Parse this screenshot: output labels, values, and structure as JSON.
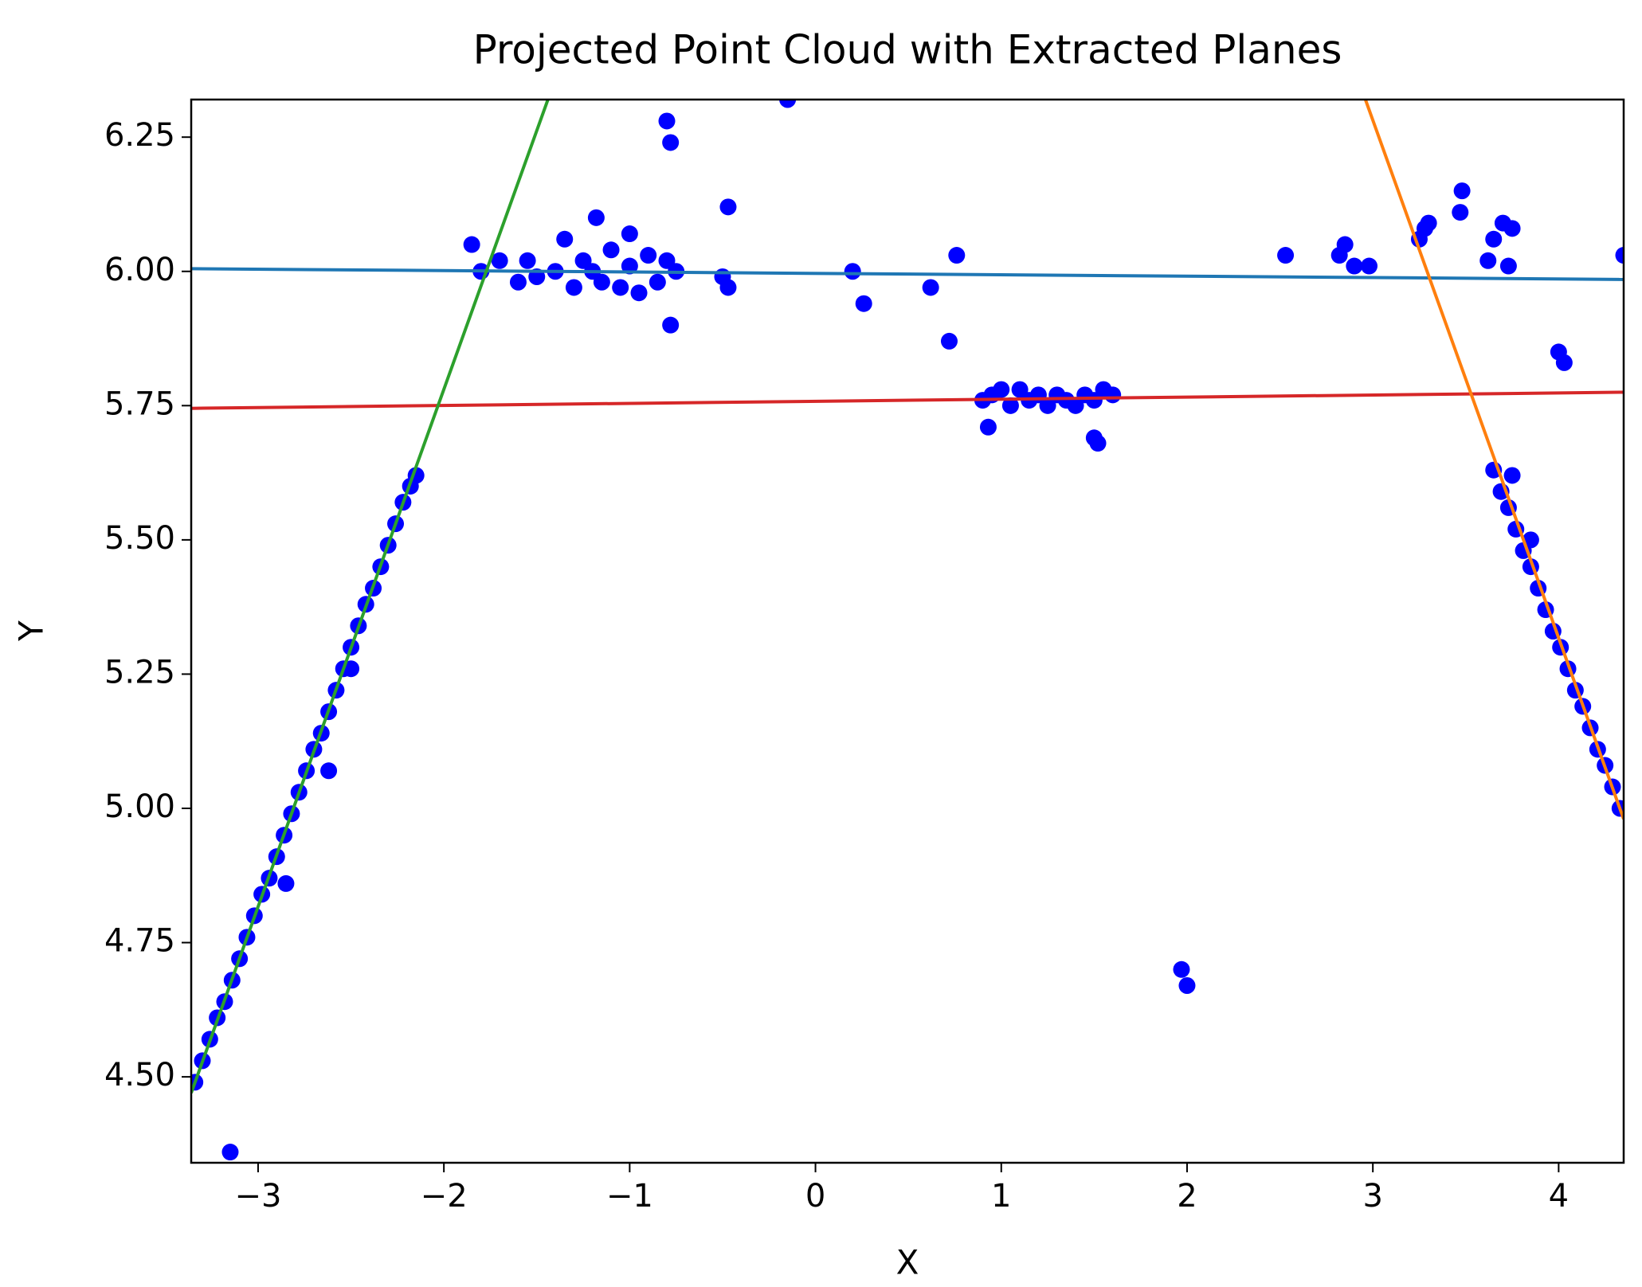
{
  "chart_data": {
    "type": "scatter",
    "title": "Projected Point Cloud with Extracted Planes",
    "x_label": "X",
    "y_label": "Y",
    "xlim": [
      -3.36,
      4.35
    ],
    "ylim": [
      4.34,
      6.32
    ],
    "xticks": [
      {
        "value": -3,
        "label": "−3"
      },
      {
        "value": -2,
        "label": "−2"
      },
      {
        "value": -1,
        "label": "−1"
      },
      0,
      1,
      2,
      3,
      4
    ],
    "yticks": [
      {
        "value": 4.5,
        "label": "4.50"
      },
      4.75,
      {
        "value": 5.0,
        "label": "5.00"
      },
      5.25,
      {
        "value": 5.5,
        "label": "5.50"
      },
      5.75,
      {
        "value": 6.0,
        "label": "6.00"
      },
      6.25
    ],
    "grid": false,
    "series": [
      {
        "type": "scatter",
        "color": "#0000ff",
        "x": [
          -3.34,
          -3.3,
          -3.26,
          -3.22,
          -3.18,
          -3.14,
          -3.1,
          -3.06,
          -3.02,
          -2.98,
          -2.94,
          -2.9,
          -2.86,
          -2.82,
          -2.78,
          -2.74,
          -2.7,
          -2.66,
          -2.62,
          -2.58,
          -2.54,
          -2.5,
          -2.46,
          -2.42,
          -2.38,
          -2.34,
          -2.3,
          -2.26,
          -2.22,
          -2.18,
          -2.15,
          -2.85,
          -2.62,
          -2.5,
          -3.15,
          3.65,
          3.69,
          3.73,
          3.77,
          3.81,
          3.85,
          3.89,
          3.93,
          3.97,
          4.01,
          4.05,
          4.09,
          4.13,
          4.17,
          4.21,
          4.25,
          4.29,
          4.33,
          3.75,
          3.85,
          -1.85,
          -1.8,
          -1.7,
          -1.6,
          -1.55,
          -1.5,
          -1.4,
          -1.35,
          -1.3,
          -1.25,
          -1.2,
          -1.18,
          -1.15,
          -1.1,
          -1.05,
          -1.0,
          -1.0,
          -0.95,
          -0.9,
          -0.85,
          -0.8,
          -0.78,
          -0.75,
          -0.5,
          -0.47,
          -0.47,
          -0.8,
          -0.78,
          -0.15,
          0.2,
          0.26,
          0.62,
          0.72,
          0.76,
          0.9,
          0.95,
          1.0,
          1.05,
          1.1,
          1.15,
          1.2,
          1.25,
          1.3,
          1.35,
          1.4,
          1.45,
          1.5,
          1.55,
          1.6,
          0.93,
          1.5,
          1.52,
          1.97,
          2.0,
          2.53,
          2.82,
          2.85,
          2.9,
          2.98,
          3.25,
          3.28,
          3.3,
          3.48,
          3.47,
          3.62,
          3.65,
          3.7,
          3.75,
          3.73,
          4.0,
          4.03,
          4.35
        ],
        "values": [
          4.49,
          4.53,
          4.57,
          4.61,
          4.64,
          4.68,
          4.72,
          4.76,
          4.8,
          4.84,
          4.87,
          4.91,
          4.95,
          4.99,
          5.03,
          5.07,
          5.11,
          5.14,
          5.18,
          5.22,
          5.26,
          5.3,
          5.34,
          5.38,
          5.41,
          5.45,
          5.49,
          5.53,
          5.57,
          5.6,
          5.62,
          4.86,
          5.07,
          5.26,
          4.36,
          5.63,
          5.59,
          5.56,
          5.52,
          5.48,
          5.45,
          5.41,
          5.37,
          5.33,
          5.3,
          5.26,
          5.22,
          5.19,
          5.15,
          5.11,
          5.08,
          5.04,
          5.0,
          5.62,
          5.5,
          6.05,
          6.0,
          6.02,
          5.98,
          6.02,
          5.99,
          6.0,
          6.06,
          5.97,
          6.02,
          6.0,
          6.1,
          5.98,
          6.04,
          5.97,
          6.07,
          6.01,
          5.96,
          6.03,
          5.98,
          6.02,
          5.9,
          6.0,
          5.99,
          5.97,
          6.12,
          6.28,
          6.24,
          6.32,
          6.0,
          5.94,
          5.97,
          5.87,
          6.03,
          5.76,
          5.77,
          5.78,
          5.75,
          5.78,
          5.76,
          5.77,
          5.75,
          5.77,
          5.76,
          5.75,
          5.77,
          5.76,
          5.78,
          5.77,
          5.71,
          5.69,
          5.68,
          4.7,
          4.67,
          6.03,
          6.03,
          6.05,
          6.01,
          6.01,
          6.06,
          6.08,
          6.09,
          6.15,
          6.11,
          6.02,
          6.06,
          6.09,
          6.08,
          6.01,
          5.85,
          5.83,
          6.03
        ]
      },
      {
        "type": "line",
        "color": "#1f77b4",
        "x": [
          -3.36,
          4.35
        ],
        "values": [
          6.005,
          5.985
        ]
      },
      {
        "type": "line",
        "color": "#d62728",
        "x": [
          -3.36,
          4.35
        ],
        "values": [
          5.745,
          5.775
        ]
      },
      {
        "type": "line",
        "color": "#2ca02c",
        "x": [
          -3.36,
          -1.44
        ],
        "values": [
          4.47,
          6.32
        ]
      },
      {
        "type": "line",
        "color": "#ff7f0e",
        "x": [
          2.96,
          4.35
        ],
        "values": [
          6.32,
          4.98
        ]
      }
    ]
  }
}
